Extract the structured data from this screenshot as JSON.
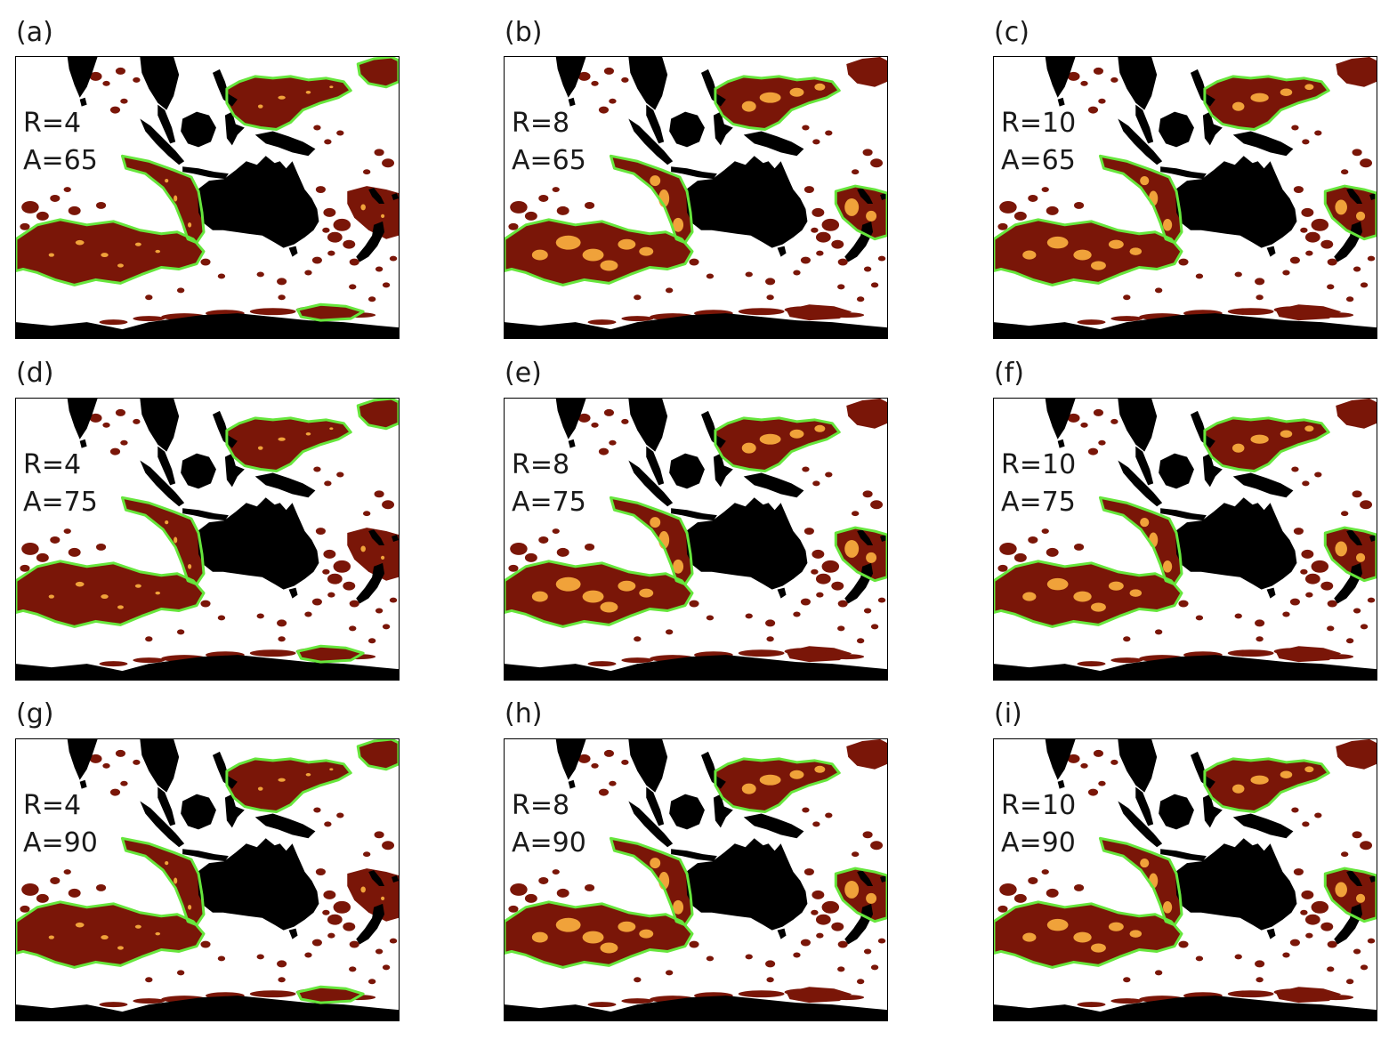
{
  "figure": {
    "panels": [
      {
        "label": "(a)",
        "r_text": "R=4",
        "a_text": "A=65",
        "R": 4,
        "A": 65
      },
      {
        "label": "(b)",
        "r_text": "R=8",
        "a_text": "A=65",
        "R": 8,
        "A": 65
      },
      {
        "label": "(c)",
        "r_text": "R=10",
        "a_text": "A=65",
        "R": 10,
        "A": 65
      },
      {
        "label": "(d)",
        "r_text": "R=4",
        "a_text": "A=75",
        "R": 4,
        "A": 75
      },
      {
        "label": "(e)",
        "r_text": "R=8",
        "a_text": "A=75",
        "R": 8,
        "A": 75
      },
      {
        "label": "(f)",
        "r_text": "R=10",
        "a_text": "A=75",
        "R": 10,
        "A": 75
      },
      {
        "label": "(g)",
        "r_text": "R=4",
        "a_text": "A=90",
        "R": 4,
        "A": 90
      },
      {
        "label": "(h)",
        "r_text": "R=8",
        "a_text": "A=90",
        "R": 8,
        "A": 90
      },
      {
        "label": "(i)",
        "r_text": "R=10",
        "a_text": "A=90",
        "R": 10,
        "A": 90
      }
    ]
  },
  "colors": {
    "land": "#000000",
    "anomaly": "#7a1608",
    "anomaly_core": "#f0a23a",
    "outline": "#66e63c",
    "background": "#ffffff"
  }
}
